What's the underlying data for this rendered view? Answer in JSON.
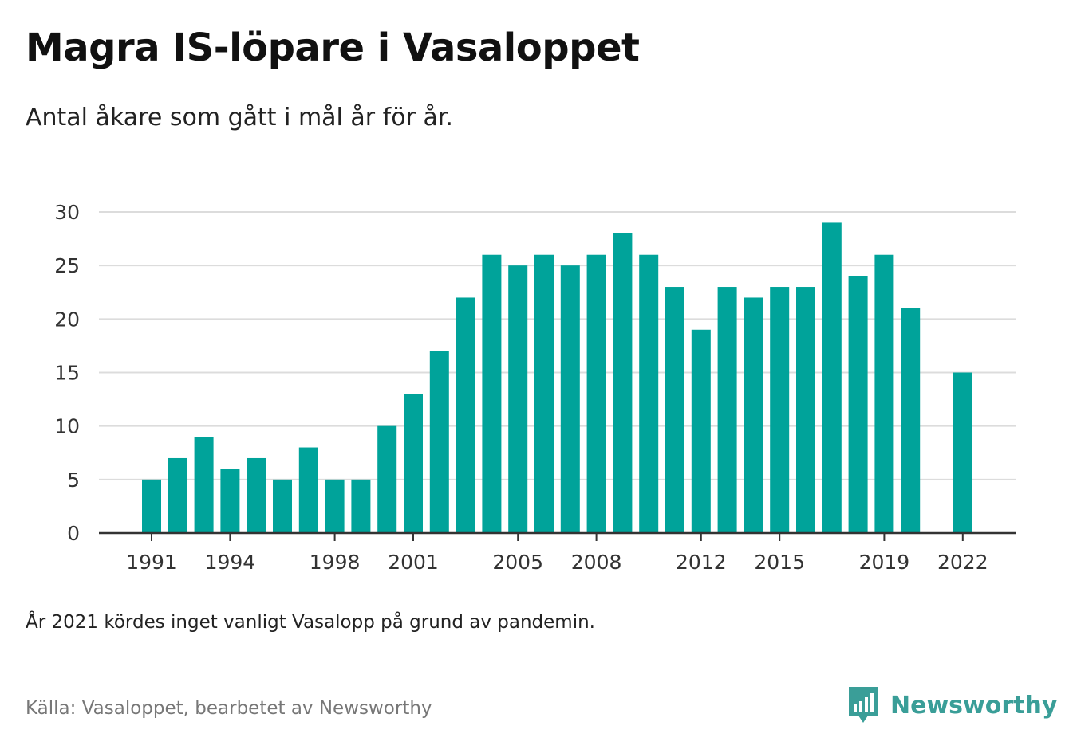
{
  "title": "Magra IS-löpare i Vasaloppet",
  "subtitle": "Antal åkare som gått i mål år för år.",
  "note": "År 2021 kördes inget vanligt Vasalopp på grund av pandemin.",
  "source": "Källa: Vasaloppet, bearbetet av Newsworthy",
  "brand": {
    "name": "Newsworthy",
    "icon": "newsworthy-logo-icon",
    "color": "#3a9e98"
  },
  "chart_data": {
    "type": "bar",
    "title": "Magra IS-löpare i Vasaloppet",
    "subtitle": "Antal åkare som gått i mål år för år.",
    "xlabel": "",
    "ylabel": "",
    "ylim": [
      0,
      30
    ],
    "yticks": [
      0,
      5,
      10,
      15,
      20,
      25,
      30
    ],
    "xtick_labels": [
      "1991",
      "1994",
      "1998",
      "2001",
      "2005",
      "2008",
      "2012",
      "2015",
      "2019",
      "2022"
    ],
    "grid": true,
    "legend": "none",
    "bar_color": "#00a39a",
    "x": [
      1991,
      1992,
      1993,
      1994,
      1995,
      1996,
      1997,
      1998,
      1999,
      2000,
      2001,
      2002,
      2003,
      2004,
      2005,
      2006,
      2007,
      2008,
      2009,
      2010,
      2011,
      2012,
      2013,
      2014,
      2015,
      2016,
      2017,
      2018,
      2019,
      2020,
      2021,
      2022
    ],
    "values": [
      5,
      7,
      9,
      6,
      7,
      5,
      8,
      5,
      5,
      10,
      13,
      17,
      22,
      26,
      25,
      26,
      25,
      26,
      28,
      26,
      23,
      19,
      23,
      22,
      23,
      23,
      29,
      24,
      26,
      21,
      null,
      15
    ]
  }
}
